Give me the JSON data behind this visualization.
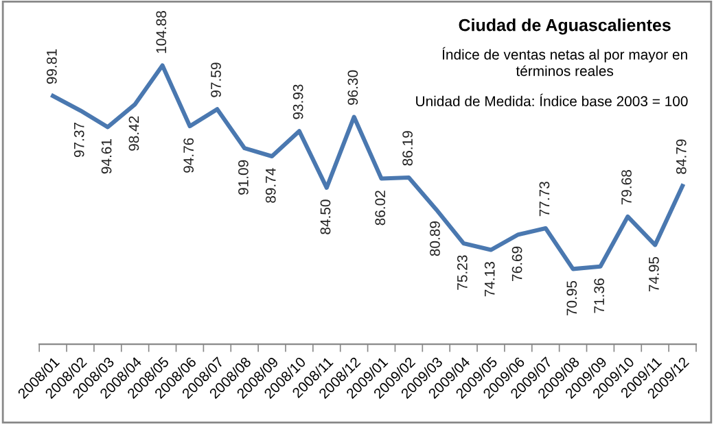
{
  "chart_data": {
    "type": "line",
    "title": "Ciudad de Aguascalientes",
    "subtitle": "Índice de ventas netas al por mayor en\ntérminos reales",
    "annotations": [
      "Unidad de Medida: Índice base 2003 = 100"
    ],
    "categories": [
      "2008/01",
      "2008/02",
      "2008/03",
      "2008/04",
      "2008/05",
      "2008/06",
      "2008/07",
      "2008/08",
      "2008/09",
      "2008/10",
      "2008/11",
      "2008/12",
      "2009/01",
      "2009/02",
      "2009/03",
      "2009/04",
      "2009/05",
      "2009/06",
      "2009/07",
      "2009/08",
      "2009/09",
      "2009/10",
      "2009/11",
      "2009/12"
    ],
    "values": [
      99.81,
      97.37,
      94.61,
      98.42,
      104.88,
      94.76,
      97.59,
      91.09,
      89.74,
      93.93,
      84.5,
      96.3,
      86.02,
      86.19,
      80.89,
      75.23,
      74.13,
      76.69,
      77.73,
      70.95,
      71.36,
      79.68,
      74.95,
      84.79
    ],
    "value_labels": [
      "99.81",
      "97.37",
      "94.61",
      "98.42",
      "104.88",
      "94.76",
      "97.59",
      "91.09",
      "89.74",
      "93.93",
      "84.50",
      "96.30",
      "86.02",
      "86.19",
      "80.89",
      "75.23",
      "74.13",
      "76.69",
      "77.73",
      "70.95",
      "71.36",
      "79.68",
      "74.95",
      "84.79"
    ],
    "color": "#4a78b0",
    "grid": false,
    "legend": false,
    "marker": "none",
    "line_style": "solid"
  }
}
